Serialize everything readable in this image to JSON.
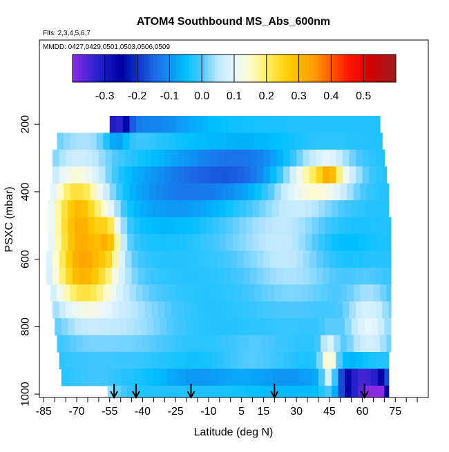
{
  "chart_data": {
    "type": "heatmap",
    "title": "ATOM4 Southbound MS_Abs_600nm",
    "subtitle_flights": "Flts: 2,3,4,5,6,7",
    "subtitle_dates": "MMDD: 0427,0429,0501,0503,0506,0509",
    "xlabel": "Latitude (deg N)",
    "ylabel": "PSXC (mbar)",
    "xlim": [
      -87,
      90
    ],
    "ylim": [
      1010,
      -50
    ],
    "x_ticks": [
      -85,
      -70,
      -55,
      -40,
      -25,
      -10,
      5,
      15,
      30,
      45,
      60,
      75
    ],
    "x_minor_ticks": [
      -80,
      -75,
      -65,
      -60,
      -50,
      -45,
      -35,
      -30,
      -20,
      -15,
      -5,
      0,
      10,
      20,
      25,
      35,
      40,
      50,
      55,
      65,
      70,
      80,
      85
    ],
    "y_ticks": [
      200,
      400,
      600,
      800,
      1000
    ],
    "colorbar": {
      "ticks": [
        -0.3,
        -0.2,
        -0.1,
        0.0,
        0.1,
        0.2,
        0.3,
        0.4,
        0.5
      ],
      "tick_labels": [
        "-0.3",
        "-0.2",
        "-0.1",
        "0.0",
        "0.1",
        "0.2",
        "0.3",
        "0.4",
        "0.5"
      ],
      "range": [
        -0.4,
        0.6
      ],
      "stops": [
        {
          "v": -0.4,
          "c": "#8a2be2"
        },
        {
          "v": -0.32,
          "c": "#2222cc"
        },
        {
          "v": -0.25,
          "c": "#0000a0"
        },
        {
          "v": -0.15,
          "c": "#1e64e6"
        },
        {
          "v": -0.05,
          "c": "#00bfff"
        },
        {
          "v": 0.0,
          "c": "#4fc8ff"
        },
        {
          "v": 0.05,
          "c": "#bfe8ff"
        },
        {
          "v": 0.1,
          "c": "#e6f6ff"
        },
        {
          "v": 0.15,
          "c": "#fffbd0"
        },
        {
          "v": 0.2,
          "c": "#ffee66"
        },
        {
          "v": 0.27,
          "c": "#ffcc00"
        },
        {
          "v": 0.35,
          "c": "#ff9900"
        },
        {
          "v": 0.45,
          "c": "#ff1a00"
        },
        {
          "v": 0.52,
          "c": "#d40000"
        },
        {
          "v": 0.6,
          "c": "#9e1f1f"
        }
      ]
    },
    "rows": [
      {
        "p": 200,
        "dp": 50,
        "lat_min": -55,
        "lat_max": 68
      },
      {
        "p": 250,
        "dp": 50,
        "lat_min": -79,
        "lat_max": 69
      },
      {
        "p": 300,
        "dp": 50,
        "lat_min": -81,
        "lat_max": 70
      },
      {
        "p": 350,
        "dp": 50,
        "lat_min": -81,
        "lat_max": 71
      },
      {
        "p": 400,
        "dp": 50,
        "lat_min": -82,
        "lat_max": 72
      },
      {
        "p": 450,
        "dp": 50,
        "lat_min": -83,
        "lat_max": 72
      },
      {
        "p": 500,
        "dp": 50,
        "lat_min": -83,
        "lat_max": 73
      },
      {
        "p": 550,
        "dp": 50,
        "lat_min": -83,
        "lat_max": 73
      },
      {
        "p": 600,
        "dp": 50,
        "lat_min": -84,
        "lat_max": 73
      },
      {
        "p": 650,
        "dp": 50,
        "lat_min": -84,
        "lat_max": 73
      },
      {
        "p": 700,
        "dp": 50,
        "lat_min": -82,
        "lat_max": 73
      },
      {
        "p": 750,
        "dp": 50,
        "lat_min": -81,
        "lat_max": 73
      },
      {
        "p": 800,
        "dp": 50,
        "lat_min": -80,
        "lat_max": 73
      },
      {
        "p": 850,
        "dp": 50,
        "lat_min": -79,
        "lat_max": 73
      },
      {
        "p": 900,
        "dp": 50,
        "lat_min": -78,
        "lat_max": 72
      },
      {
        "p": 950,
        "dp": 50,
        "lat_min": -77,
        "lat_max": 72
      },
      {
        "p": 1000,
        "dp": 50,
        "lat_min": -56,
        "lat_max": 72
      }
    ],
    "background_value": -0.03,
    "features": [
      {
        "lat": -67,
        "p": 550,
        "rlat": 14,
        "rp": 200,
        "value": 0.26
      },
      {
        "lat": -55,
        "p": 540,
        "rlat": 5,
        "rp": 70,
        "value": 0.14
      },
      {
        "lat": -72,
        "p": 430,
        "rlat": 12,
        "rp": 110,
        "value": 0.09
      },
      {
        "lat": -66,
        "p": 650,
        "rlat": 18,
        "rp": 90,
        "value": 0.08
      },
      {
        "lat": 43,
        "p": 350,
        "rlat": 14,
        "rp": 60,
        "value": 0.2
      },
      {
        "lat": 45,
        "p": 335,
        "rlat": 4,
        "rp": 25,
        "value": 0.13
      },
      {
        "lat": 30,
        "p": 380,
        "rlat": 16,
        "rp": 80,
        "value": 0.08
      },
      {
        "lat": 63,
        "p": 800,
        "rlat": 10,
        "rp": 120,
        "value": 0.1
      },
      {
        "lat": 45,
        "p": 920,
        "rlat": 4,
        "rp": 80,
        "value": 0.2
      },
      {
        "lat": 28,
        "p": 600,
        "rlat": 22,
        "rp": 150,
        "value": 0.05
      },
      {
        "lat": -45,
        "p": 780,
        "rlat": 20,
        "rp": 100,
        "value": 0.04
      },
      {
        "lat": -50,
        "p": 240,
        "rlat": 30,
        "rp": 60,
        "value": 0.03
      },
      {
        "lat": -52,
        "p": 210,
        "rlat": 6,
        "rp": 40,
        "value": -0.3
      },
      {
        "lat": -40,
        "p": 210,
        "rlat": 25,
        "rp": 30,
        "value": -0.16
      },
      {
        "lat": -20,
        "p": 400,
        "rlat": 30,
        "rp": 110,
        "value": -0.12
      },
      {
        "lat": 10,
        "p": 330,
        "rlat": 30,
        "rp": 70,
        "value": -0.14
      },
      {
        "lat": -15,
        "p": 940,
        "rlat": 20,
        "rp": 30,
        "value": -0.1
      },
      {
        "lat": 25,
        "p": 960,
        "rlat": 20,
        "rp": 40,
        "value": -0.1
      },
      {
        "lat": 60,
        "p": 980,
        "rlat": 10,
        "rp": 50,
        "value": -0.3
      },
      {
        "lat": 67,
        "p": 990,
        "rlat": 4,
        "rp": 30,
        "value": -0.38
      },
      {
        "lat": 60,
        "p": 960,
        "rlat": 14,
        "rp": 60,
        "value": -0.18
      },
      {
        "lat": 10,
        "p": 880,
        "rlat": 15,
        "rp": 40,
        "value": 0.02
      },
      {
        "lat": -60,
        "p": 990,
        "rlat": 10,
        "rp": 30,
        "value": 0.06
      },
      {
        "lat": 48,
        "p": 560,
        "rlat": 15,
        "rp": 60,
        "value": -0.08
      },
      {
        "lat": 5,
        "p": 500,
        "rlat": 25,
        "rp": 90,
        "value": 0.02
      }
    ],
    "arrows_lat": [
      -53,
      -43,
      -18,
      20,
      61
    ],
    "colors": {
      "arrow": "#000000",
      "frame": "#000000",
      "dots": "#ffffff"
    }
  }
}
